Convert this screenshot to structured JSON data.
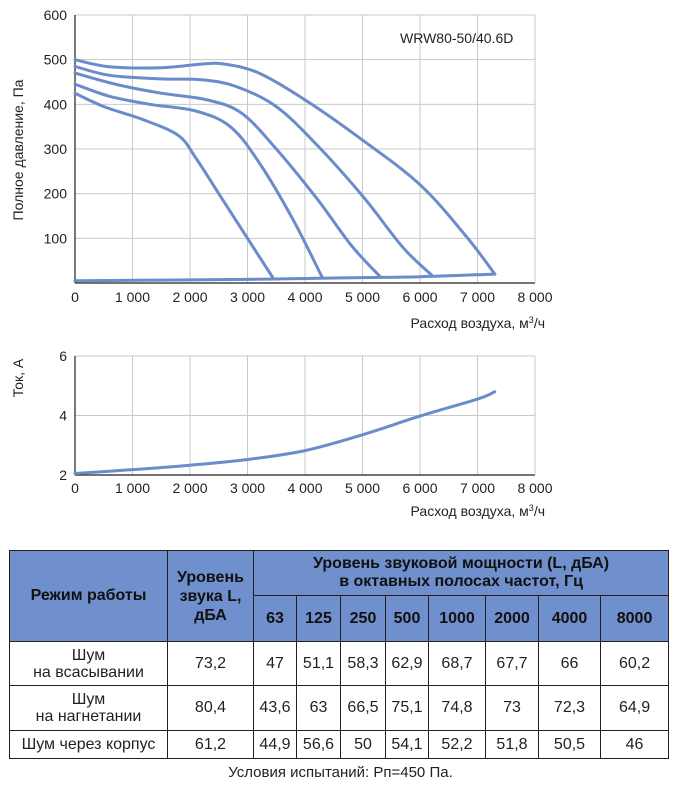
{
  "pressure_chart": {
    "ylabel": "Полное давление, Па",
    "xlabel_prefix": "Расход воздуха, м",
    "xlabel_sup": "3",
    "xlabel_suffix": "/ч",
    "model_label": "WRW80-50/40.6D",
    "y_ticks": [
      "600",
      "500",
      "400",
      "300",
      "200",
      "100"
    ],
    "x_ticks": [
      "0",
      "1 000",
      "2 000",
      "3 000",
      "4 000",
      "5 000",
      "6 000",
      "7 000",
      "8 000"
    ]
  },
  "current_chart": {
    "ylabel": "Ток, А",
    "xlabel_prefix": "Расход воздуха, м",
    "xlabel_sup": "3",
    "xlabel_suffix": "/ч",
    "y_ticks": [
      "6",
      "4",
      "2"
    ],
    "x_ticks": [
      "0",
      "1 000",
      "2 000",
      "3 000",
      "4 000",
      "5 000",
      "6 000",
      "7 000",
      "8 000"
    ]
  },
  "chart_data": [
    {
      "type": "line",
      "x_unit": "м³/ч",
      "y_unit": "Па",
      "xlim": [
        0,
        8000
      ],
      "ylim": [
        0,
        600
      ],
      "grid": true,
      "line_color": "#6a8ccb",
      "series": [
        {
          "x": [
            0,
            600,
            1500,
            2200,
            2600,
            3200,
            4000,
            5000,
            6000,
            6800,
            7300
          ],
          "y": [
            500,
            484,
            482,
            490,
            490,
            470,
            410,
            320,
            220,
            105,
            20
          ]
        },
        {
          "x": [
            0,
            600,
            1500,
            2200,
            2800,
            3500,
            4200,
            5000,
            5700,
            6200
          ],
          "y": [
            485,
            465,
            457,
            455,
            440,
            395,
            310,
            195,
            80,
            18
          ]
        },
        {
          "x": [
            0,
            700,
            1500,
            2300,
            2900,
            3500,
            4200,
            4800,
            5300
          ],
          "y": [
            470,
            445,
            425,
            410,
            380,
            300,
            190,
            85,
            15
          ]
        },
        {
          "x": [
            0,
            600,
            1300,
            2100,
            2700,
            3200,
            3800,
            4300
          ],
          "y": [
            445,
            418,
            400,
            385,
            350,
            270,
            140,
            12
          ]
        },
        {
          "x": [
            0,
            500,
            1200,
            1800,
            2100,
            2600,
            3000,
            3450
          ],
          "y": [
            425,
            395,
            365,
            330,
            280,
            180,
            100,
            10
          ]
        },
        {
          "name": "system",
          "x": [
            0,
            1000,
            2000,
            3000,
            4000,
            5000,
            6000,
            7300
          ],
          "y": [
            5,
            6,
            7,
            8,
            10,
            12,
            14,
            20
          ]
        }
      ]
    },
    {
      "type": "line",
      "x_unit": "м³/ч",
      "y_unit": "А",
      "xlim": [
        0,
        8000
      ],
      "ylim": [
        2,
        6
      ],
      "grid": true,
      "line_color": "#6a8ccb",
      "series": [
        {
          "x": [
            0,
            1000,
            2000,
            3000,
            4000,
            5000,
            6000,
            7000,
            7300
          ],
          "y": [
            2.05,
            2.18,
            2.33,
            2.52,
            2.82,
            3.35,
            3.98,
            4.55,
            4.8
          ]
        }
      ]
    }
  ],
  "noise_table": {
    "header_mode": "Режим работы",
    "header_level_lines": [
      "Уровень",
      "звука L,",
      "дБА"
    ],
    "header_power_lines": [
      "Уровень звуковой мощности (L, дБА)",
      "в октавных полосах частот, Гц"
    ],
    "bands": [
      "63",
      "125",
      "250",
      "500",
      "1000",
      "2000",
      "4000",
      "8000"
    ],
    "rows": [
      {
        "mode_lines": [
          "Шум",
          "на всасывании"
        ],
        "level": "73,2",
        "values": [
          "47",
          "51,1",
          "58,3",
          "62,9",
          "68,7",
          "67,7",
          "66",
          "60,2"
        ]
      },
      {
        "mode_lines": [
          "Шум",
          "на нагнетании"
        ],
        "level": "80,4",
        "values": [
          "43,6",
          "63",
          "66,5",
          "75,1",
          "74,8",
          "73",
          "72,3",
          "64,9"
        ]
      },
      {
        "mode_lines": [
          "Шум через корпус"
        ],
        "level": "61,2",
        "values": [
          "44,9",
          "56,6",
          "50",
          "54,1",
          "52,2",
          "51,8",
          "50,5",
          "46"
        ]
      }
    ]
  },
  "conditions": "Условия испытаний: Рп=450 Па."
}
